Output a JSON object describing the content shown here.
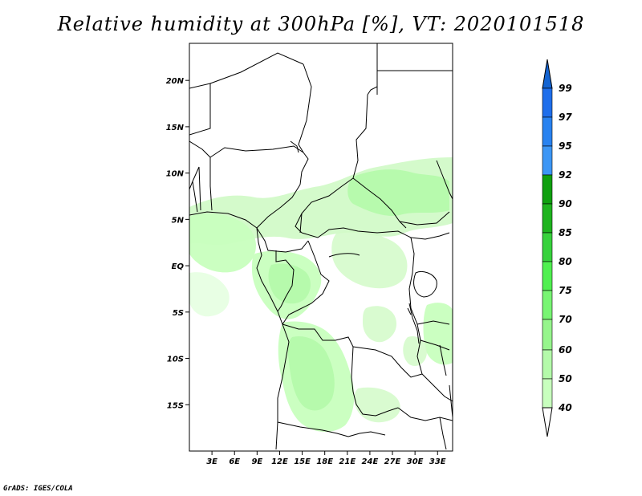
{
  "title": "Relative humidity at 300hPa [%], VT: 2020101518",
  "credit": "GrADS: IGES/COLA",
  "map": {
    "lon_range": [
      0,
      35
    ],
    "lat_range": [
      -20,
      24
    ],
    "lat_labels": [
      {
        "lat": 20,
        "text": "20N"
      },
      {
        "lat": 15,
        "text": "15N"
      },
      {
        "lat": 10,
        "text": "10N"
      },
      {
        "lat": 5,
        "text": "5N"
      },
      {
        "lat": 0,
        "text": "EQ"
      },
      {
        "lat": -5,
        "text": "5S"
      },
      {
        "lat": -10,
        "text": "10S"
      },
      {
        "lat": -15,
        "text": "15S"
      }
    ],
    "lon_labels": [
      {
        "lon": 3,
        "text": "3E"
      },
      {
        "lon": 6,
        "text": "6E"
      },
      {
        "lon": 9,
        "text": "9E"
      },
      {
        "lon": 12,
        "text": "12E"
      },
      {
        "lon": 15,
        "text": "15E"
      },
      {
        "lon": 18,
        "text": "18E"
      },
      {
        "lon": 21,
        "text": "21E"
      },
      {
        "lon": 24,
        "text": "24E"
      },
      {
        "lon": 27,
        "text": "27E"
      },
      {
        "lon": 30,
        "text": "30E"
      },
      {
        "lon": 33,
        "text": "33E"
      }
    ]
  },
  "colorbar": {
    "labels": [
      "99",
      "97",
      "95",
      "92",
      "90",
      "85",
      "80",
      "75",
      "70",
      "60",
      "50",
      "40"
    ],
    "colors": [
      "#1464d2",
      "#1e6eeb",
      "#2882f0",
      "#3c96f5",
      "#0fa00f",
      "#1eb41e",
      "#37d23c",
      "#50f050",
      "#78f573",
      "#96f58c",
      "#b4faaa",
      "#c8ffbe",
      "#e6ffe1",
      "#ffffff"
    ]
  },
  "chart_data": {
    "type": "heatmap",
    "variable": "Relative humidity at 300hPa",
    "units": "%",
    "valid_time": "2020101518",
    "levels": [
      40,
      50,
      60,
      70,
      75,
      80,
      85,
      90,
      92,
      95,
      97,
      99
    ],
    "regions": [
      {
        "lon": 28,
        "lat": 8.5,
        "value": 55
      },
      {
        "lon": 24,
        "lat": 6,
        "value": 52
      },
      {
        "lon": 3,
        "lat": 5,
        "value": 52
      },
      {
        "lon": 12,
        "lat": 6,
        "value": 48
      },
      {
        "lon": 14,
        "lat": -1,
        "value": 58
      },
      {
        "lon": 15,
        "lat": -12,
        "value": 62
      },
      {
        "lon": 18,
        "lat": -10,
        "value": 55
      },
      {
        "lon": 33,
        "lat": -6,
        "value": 50
      },
      {
        "lon": 24,
        "lat": -5,
        "value": 45
      }
    ]
  }
}
